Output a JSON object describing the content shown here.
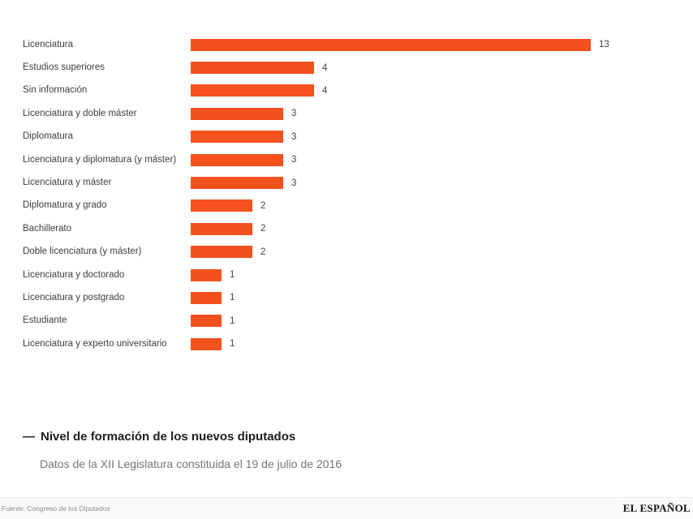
{
  "chart_data": {
    "type": "bar",
    "orientation": "horizontal",
    "categories": [
      "Licenciatura",
      "Estudios superiores",
      "Sin información",
      "Licenciatura y doble máster",
      "Diplomatura",
      "Licenciatura y diplomatura (y máster)",
      "Licenciatura y máster",
      "Diplomatura y grado",
      "Bachillerato",
      "Doble licenciatura (y máster)",
      "Licenciatura y doctorado",
      "Licenciatura y postgrado",
      "Estudiante",
      "Licenciatura y experto universitario"
    ],
    "values": [
      13,
      4,
      4,
      3,
      3,
      3,
      3,
      2,
      2,
      2,
      1,
      1,
      1,
      1
    ],
    "title": "Nivel de formación de los nuevos diputados",
    "subtitle": "Datos de la XII Legislatura constituida el 19 de julio de 2016",
    "xlabel": "",
    "ylabel": "",
    "xlim": [
      0,
      13
    ],
    "grid": false,
    "value_labels": true,
    "legend": false,
    "bar_color": "#f4511e"
  },
  "title_block": {
    "dash": "—",
    "title": "Nivel de formación de los nuevos diputados",
    "subtitle": "Datos de la XII Legislatura constituida el 19 de julio de 2016"
  },
  "footer": {
    "source": "Fuente: Congreso de los Diputados",
    "brand": "EL ESPAÑOL"
  }
}
